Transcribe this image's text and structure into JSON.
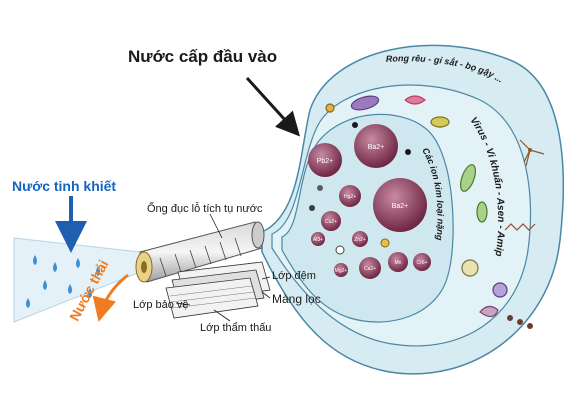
{
  "labels": {
    "title": "Nước cấp đầu vào",
    "pure_water": "Nước tinh khiết",
    "waste_water": "Nước thải",
    "collection_tube": "Ống đục lỗ tích tụ nước",
    "cushion_layer": "Lớp đệm",
    "membrane": "Màng lọc",
    "protective_layer": "Lớp bảo vệ",
    "permeate_layer": "Lớp thẩm thấu"
  },
  "arc_labels": {
    "outer": "Rong rêu - gỉ sắt - bọ gậy ...",
    "middle": "Virus - Vi khuẩn - Asen - Amip",
    "inner": "Các ion kim loại nặng"
  },
  "ions": [
    {
      "text": "Pb2+"
    },
    {
      "text": "Ba2+"
    },
    {
      "text": "Ba2+"
    },
    {
      "text": "Hg2+"
    },
    {
      "text": "Cu2+"
    },
    {
      "text": "Zn2+"
    },
    {
      "text": "Al3+"
    },
    {
      "text": "Ca2+"
    },
    {
      "text": "Mg2+"
    },
    {
      "text": "Mn"
    },
    {
      "text": "Cr6+"
    }
  ],
  "colors": {
    "pure_water_text": "#1565c0",
    "waste_water_text": "#ef7c22",
    "zone_fill": "#cfe8ef",
    "zone_stroke": "#4a88a6",
    "ion_fill": "#8c3a57",
    "arrow_blue": "#1e5fb0",
    "arrow_orange": "#ef7c22"
  }
}
